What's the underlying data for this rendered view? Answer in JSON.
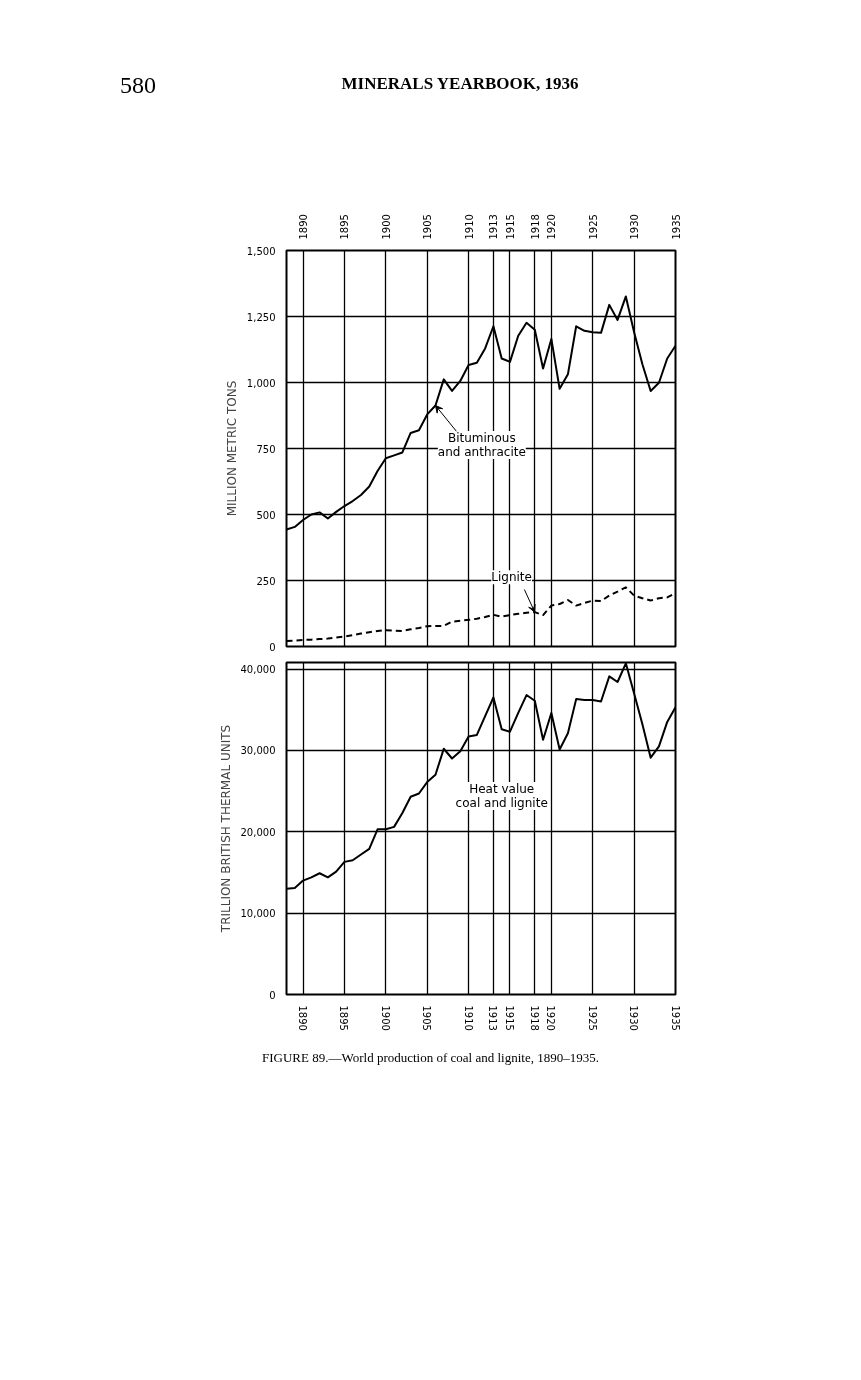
{
  "chart_data": [
    {
      "type": "line",
      "ylabel": "MILLION METRIC TONS",
      "annotations": [
        "580",
        "MINERALS YEARBOOK, 1936",
        {
          "text": "Bituminous\nand anthracite",
          "x": 1906,
          "y": 913
        },
        {
          "text": "Lignite",
          "x": 1918,
          "y": 130
        }
      ],
      "x": [
        1888,
        1889,
        1890,
        1891,
        1892,
        1893,
        1894,
        1895,
        1896,
        1897,
        1898,
        1899,
        1900,
        1901,
        1902,
        1903,
        1904,
        1905,
        1906,
        1907,
        1908,
        1909,
        1910,
        1911,
        1912,
        1913,
        1914,
        1915,
        1916,
        1917,
        1918,
        1919,
        1920,
        1921,
        1922,
        1923,
        1924,
        1925,
        1926,
        1927,
        1928,
        1929,
        1930,
        1931,
        1932,
        1933,
        1934,
        1935
      ],
      "series": [
        {
          "color": "#000000",
          "line_style": "solid",
          "values": [
            443,
            453,
            479,
            500,
            508,
            485,
            510,
            532,
            551,
            574,
            606,
            665,
            713,
            724,
            735,
            809,
            819,
            879,
            913,
            1012,
            968,
            1006,
            1066,
            1075,
            1129,
            1213,
            1091,
            1078,
            1177,
            1226,
            1200,
            1053,
            1165,
            976,
            1031,
            1213,
            1196,
            1190,
            1188,
            1294,
            1237,
            1326,
            1190,
            1069,
            968,
            999,
            1091,
            1139
          ]
        },
        {
          "color": "#000000",
          "line_style": "dashed",
          "values": [
            21,
            22,
            25,
            26,
            28,
            30,
            34,
            38,
            43,
            49,
            54,
            59,
            62,
            60,
            59,
            65,
            70,
            77,
            78,
            78,
            94,
            98,
            101,
            105,
            112,
            120,
            113,
            119,
            124,
            128,
            130,
            119,
            155,
            161,
            176,
            155,
            165,
            174,
            172,
            193,
            208,
            224,
            193,
            183,
            174,
            183,
            186,
            202
          ]
        }
      ],
      "xlim": [
        1888,
        1935
      ],
      "xticks": [
        1890,
        1895,
        1900,
        1905,
        1910,
        1913,
        1915,
        1918,
        1920,
        1925,
        1930,
        1935
      ],
      "ylim": [
        0,
        1500
      ],
      "yticks": [
        0,
        250,
        500,
        750,
        {
          "value": 1000,
          "label": "1,000"
        },
        {
          "value": 1250,
          "label": "1,250"
        },
        {
          "value": 1500,
          "label": "1,500"
        }
      ],
      "grid": true
    },
    {
      "type": "line",
      "title": "FIGURE 89.—World production of coal and lignite, 1890–1935.",
      "ylabel": "TRILLION BRITISH THERMAL UNITS",
      "annotations": [
        "Heat value\ncoal and lignite"
      ],
      "x": [
        1888,
        1889,
        1890,
        1891,
        1892,
        1893,
        1894,
        1895,
        1896,
        1897,
        1898,
        1899,
        1900,
        1901,
        1902,
        1903,
        1904,
        1905,
        1906,
        1907,
        1908,
        1909,
        1910,
        1911,
        1912,
        1913,
        1914,
        1915,
        1916,
        1917,
        1918,
        1919,
        1920,
        1921,
        1922,
        1923,
        1924,
        1925,
        1926,
        1927,
        1928,
        1929,
        1930,
        1931,
        1932,
        1933,
        1934,
        1935
      ],
      "series": [
        {
          "color": "#000000",
          "line_style": "solid",
          "values": [
            13000,
            13100,
            14000,
            14400,
            14900,
            14400,
            15100,
            16300,
            16500,
            17200,
            17900,
            20300,
            20300,
            20600,
            22300,
            24300,
            24700,
            26100,
            27000,
            30200,
            29000,
            29900,
            31700,
            31900,
            34200,
            36500,
            32600,
            32300,
            34600,
            36800,
            36100,
            31300,
            34600,
            30100,
            32100,
            36300,
            36200,
            36200,
            36000,
            39100,
            38400,
            40700,
            37000,
            33200,
            29100,
            30500,
            33500,
            35300
          ]
        }
      ],
      "xlim": [
        1888,
        1935
      ],
      "xticks": [
        1890,
        1895,
        1900,
        1905,
        1910,
        1913,
        1915,
        1918,
        1920,
        1925,
        1930,
        1935
      ],
      "ylim": [
        0,
        40800
      ],
      "yticks": [
        0,
        {
          "value": 10000,
          "label": "10,000"
        },
        {
          "value": 20000,
          "label": "20,000"
        },
        {
          "value": 30000,
          "label": "30,000"
        },
        {
          "value": 40000,
          "label": "40,000"
        }
      ],
      "grid": true
    }
  ]
}
